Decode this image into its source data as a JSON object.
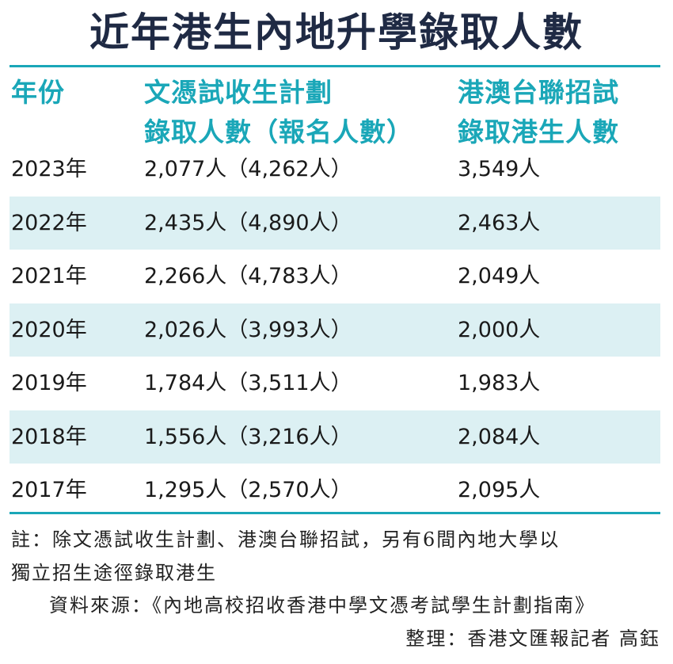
{
  "title": "近年港生內地升學錄取人數",
  "headers": {
    "year": "年份",
    "dse_line1": "文憑試收生計劃",
    "dse_line2": "錄取人數（報名人數）",
    "joint_line1": "港澳台聯招試",
    "joint_line2": "錄取港生人數"
  },
  "rows": [
    {
      "year": "2023年",
      "dse": "2,077人（4,262人）",
      "joint": "3,549人"
    },
    {
      "year": "2022年",
      "dse": "2,435人（4,890人）",
      "joint": "2,463人"
    },
    {
      "year": "2021年",
      "dse": "2,266人（4,783人）",
      "joint": "2,049人"
    },
    {
      "year": "2020年",
      "dse": "2,026人（3,993人）",
      "joint": "2,000人"
    },
    {
      "year": "2019年",
      "dse": "1,784人（3,511人）",
      "joint": "1,983人"
    },
    {
      "year": "2018年",
      "dse": "1,556人（3,216人）",
      "joint": "2,084人"
    },
    {
      "year": "2017年",
      "dse": "1,295人（2,570人）",
      "joint": "2,095人"
    }
  ],
  "footnote": {
    "line1": "註：除文憑試收生計劃、港澳台聯招試，另有6間內地大學以",
    "line2": "獨立招生途徑錄取港生"
  },
  "source": "資料來源：《內地高校招收香港中學文憑考試學生計劃指南》",
  "compiler": "整理：香港文匯報記者 高鈺",
  "colors": {
    "accent": "#1aa7b8",
    "title": "#1f2a44",
    "row_shade": "#dcf0f3"
  }
}
